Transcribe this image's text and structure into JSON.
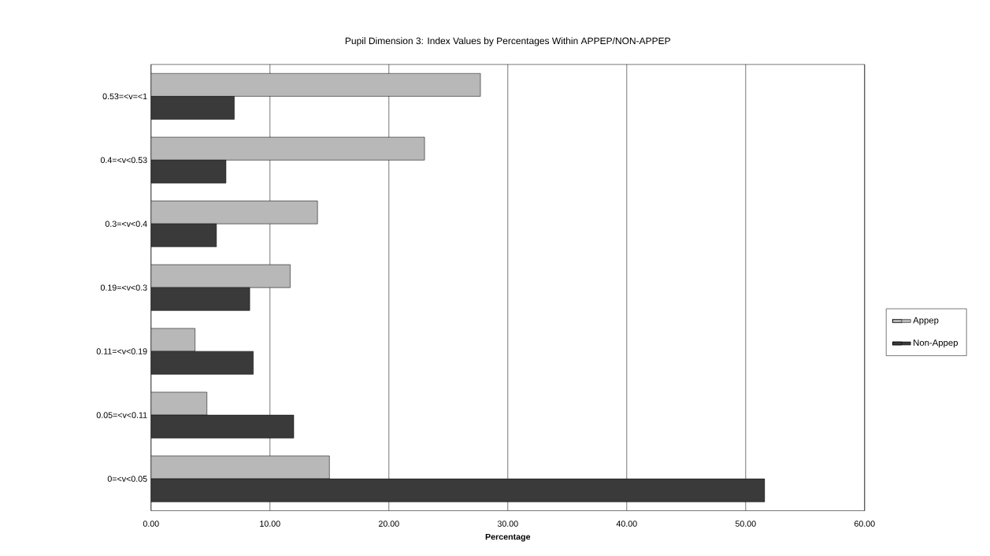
{
  "chart_data": {
    "type": "bar",
    "orientation": "horizontal",
    "title": "Pupil Dimension 3: Index Values by Percentages Within APPEP/NON-APPEP",
    "xlabel": "Percentage",
    "categories": [
      "0.53=<v=<1",
      "0.4=<v<0.53",
      "0.3=<v<0.4",
      "0.19=<v<0.3",
      "0.11=<v<0.19",
      "0.05=<v<0.11",
      "0=<v<0.05"
    ],
    "series": [
      {
        "name": "Appep",
        "color": "#b8b8b8",
        "values": [
          27.7,
          23.0,
          14.0,
          11.7,
          3.7,
          4.7,
          15.0
        ]
      },
      {
        "name": "Non-Appep",
        "color": "#3a3a3a",
        "values": [
          7.0,
          6.3,
          5.5,
          8.3,
          8.6,
          12.0,
          51.6
        ]
      }
    ],
    "xlim": [
      0,
      60
    ],
    "xticks": [
      {
        "value": 0,
        "label": "0.00"
      },
      {
        "value": 10,
        "label": "10.00"
      },
      {
        "value": 20,
        "label": "20.00"
      },
      {
        "value": 30,
        "label": "30.00"
      },
      {
        "value": 40,
        "label": "40.00"
      },
      {
        "value": 50,
        "label": "50.00"
      },
      {
        "value": 60,
        "label": "60.00"
      }
    ],
    "grid": "x",
    "legend": "right"
  }
}
